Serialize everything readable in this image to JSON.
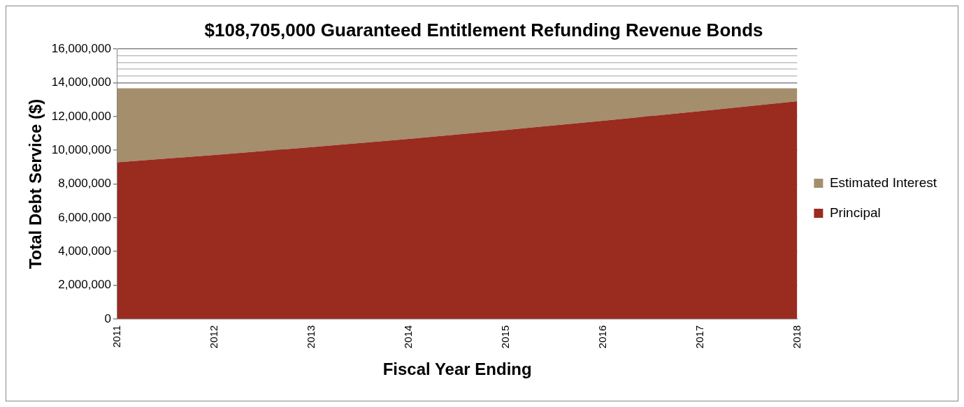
{
  "chart_data": {
    "type": "area",
    "stacked": true,
    "title": "$108,705,000 Guaranteed Entitlement Refunding Revenue Bonds",
    "xlabel": "Fiscal Year Ending",
    "ylabel": "Total Debt Service ($)",
    "categories": [
      "2011",
      "2012",
      "2013",
      "2014",
      "2015",
      "2016",
      "2017",
      "2018"
    ],
    "series": [
      {
        "name": "Principal",
        "color": "#9a2b1f",
        "values": [
          9280000,
          9720000,
          10180000,
          10670000,
          11200000,
          11750000,
          12320000,
          12900000
        ]
      },
      {
        "name": "Estimated Interest",
        "color": "#a48e6c",
        "values": [
          4390000,
          3950000,
          3490000,
          3000000,
          2470000,
          1920000,
          1350000,
          770000
        ]
      }
    ],
    "ylim": [
      0,
      16000000
    ],
    "yticks": [
      0,
      {
        "value": 2000000,
        "label": "2,000,000"
      },
      {
        "value": 4000000,
        "label": "4,000,000"
      },
      {
        "value": 6000000,
        "label": "6,000,000"
      },
      {
        "value": 8000000,
        "label": "8,000,000"
      },
      {
        "value": 10000000,
        "label": "10,000,000"
      },
      {
        "value": 12000000,
        "label": "12,000,000"
      },
      {
        "value": 14000000,
        "label": "14,000,000"
      },
      {
        "value": 14400000,
        "label": null
      },
      {
        "value": 14800000,
        "label": null
      },
      {
        "value": 15200000,
        "label": null
      },
      {
        "value": 15600000,
        "label": null
      },
      {
        "value": 16000000,
        "label": "16,000,000"
      }
    ],
    "grid": "y",
    "legend": "right"
  }
}
